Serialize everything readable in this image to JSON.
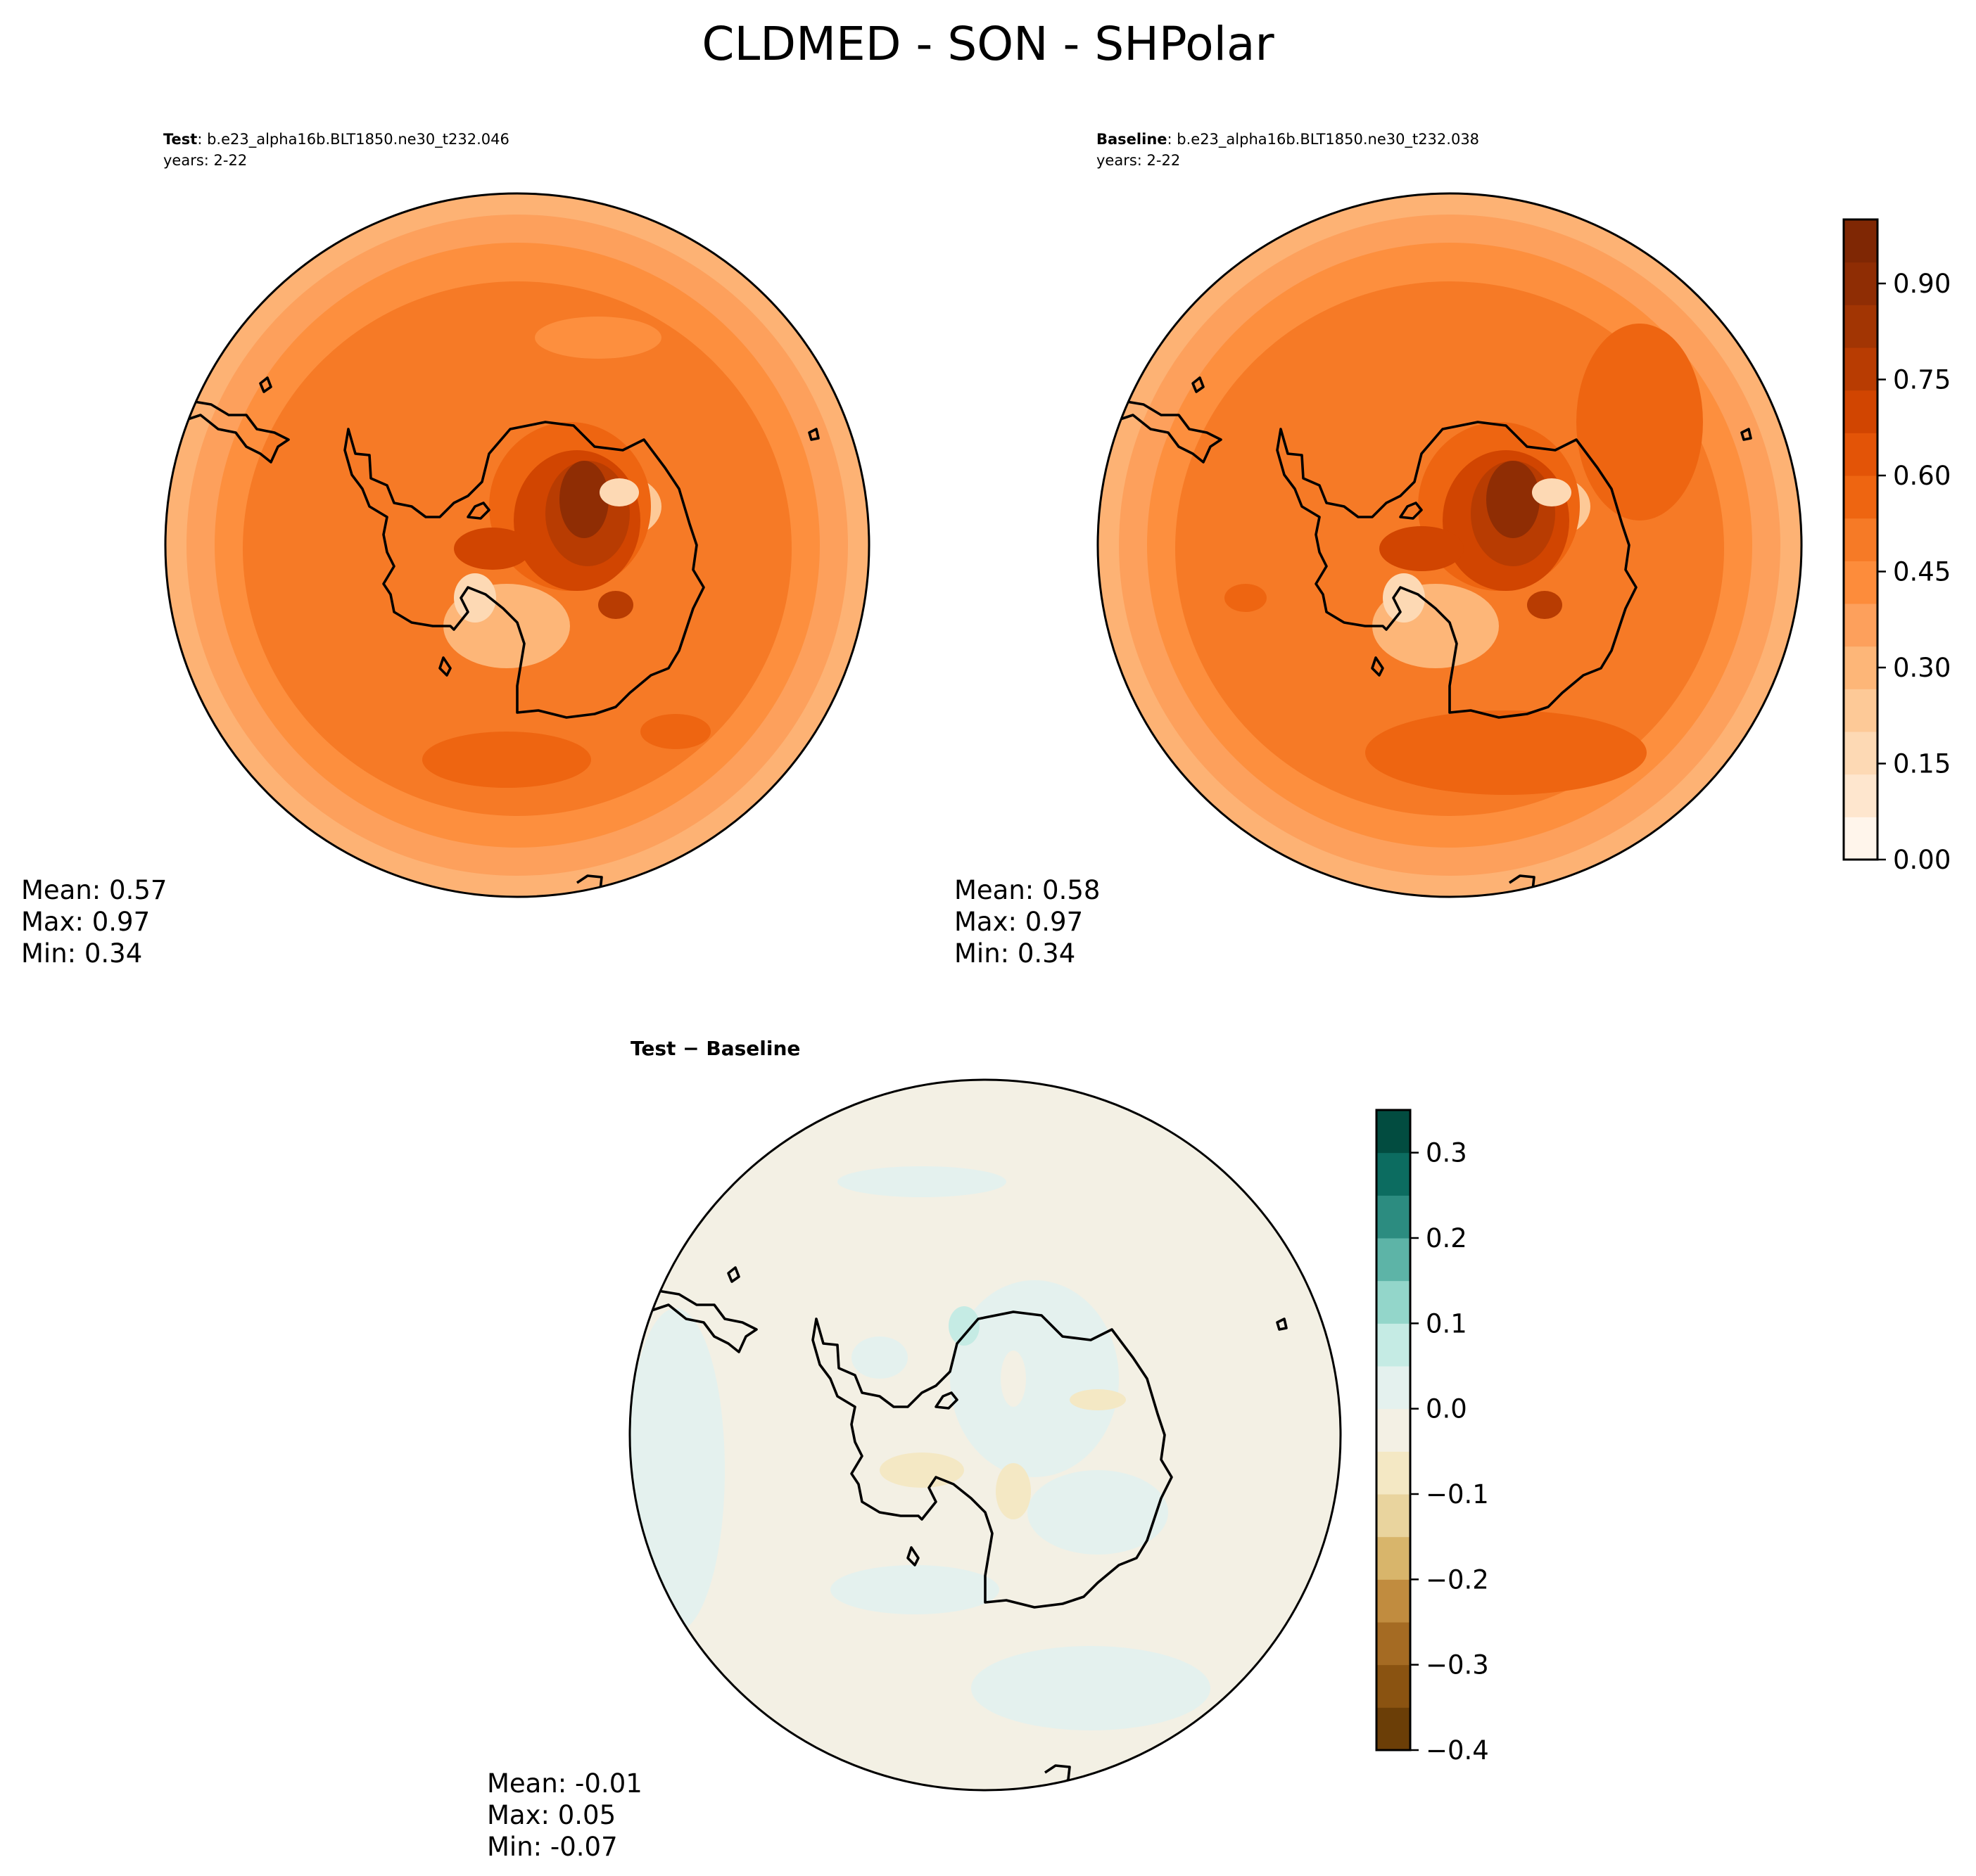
{
  "title": "CLDMED - SON - SHPolar",
  "panels": {
    "test": {
      "label": "Test",
      "case": ": b.e23_alpha16b.BLT1850.ne30_t232.046",
      "years": "years: 2-22",
      "mean": "Mean:  0.57",
      "max": "Max:  0.97",
      "min": "Min:  0.34"
    },
    "baseline": {
      "label": "Baseline",
      "case": ": b.e23_alpha16b.BLT1850.ne30_t232.038",
      "years": "years: 2-22",
      "mean": "Mean:  0.58",
      "max": "Max:  0.97",
      "min": "Min:  0.34"
    },
    "diff": {
      "label": "Test − Baseline",
      "mean": "Mean: -0.01",
      "max": "Max:  0.05",
      "min": "Min: -0.07"
    }
  },
  "colorbars": {
    "main": {
      "range": [
        0,
        1.0
      ],
      "ticks": [
        "0.00",
        "0.15",
        "0.30",
        "0.45",
        "0.60",
        "0.75",
        "0.90"
      ],
      "tick_values": [
        0,
        0.15,
        0.3,
        0.45,
        0.6,
        0.75,
        0.9
      ],
      "colors": [
        "#fff5eb",
        "#fee6ce",
        "#fdd9b4",
        "#fdc997",
        "#fdb678",
        "#fda05c",
        "#fd8c3b",
        "#f67a26",
        "#ee6511",
        "#e35407",
        "#d14501",
        "#b83c02",
        "#a23503",
        "#8f2d04",
        "#7f2704"
      ]
    },
    "diff": {
      "range": [
        -0.4,
        0.35
      ],
      "ticks": [
        "−0.4",
        "−0.3",
        "−0.2",
        "−0.1",
        "0.0",
        "0.1",
        "0.2",
        "0.3"
      ],
      "tick_values": [
        -0.4,
        -0.3,
        -0.2,
        -0.1,
        0.0,
        0.1,
        0.2,
        0.3
      ],
      "colors": [
        "#6b3e07",
        "#8a5311",
        "#a56b23",
        "#c18c3f",
        "#d8b56b",
        "#e9d49e",
        "#f4e8c4",
        "#f3f0e4",
        "#e4f1ee",
        "#c5ebe4",
        "#93d6ca",
        "#5db4a7",
        "#2c8c80",
        "#0c6c60",
        "#024c40"
      ]
    }
  }
}
